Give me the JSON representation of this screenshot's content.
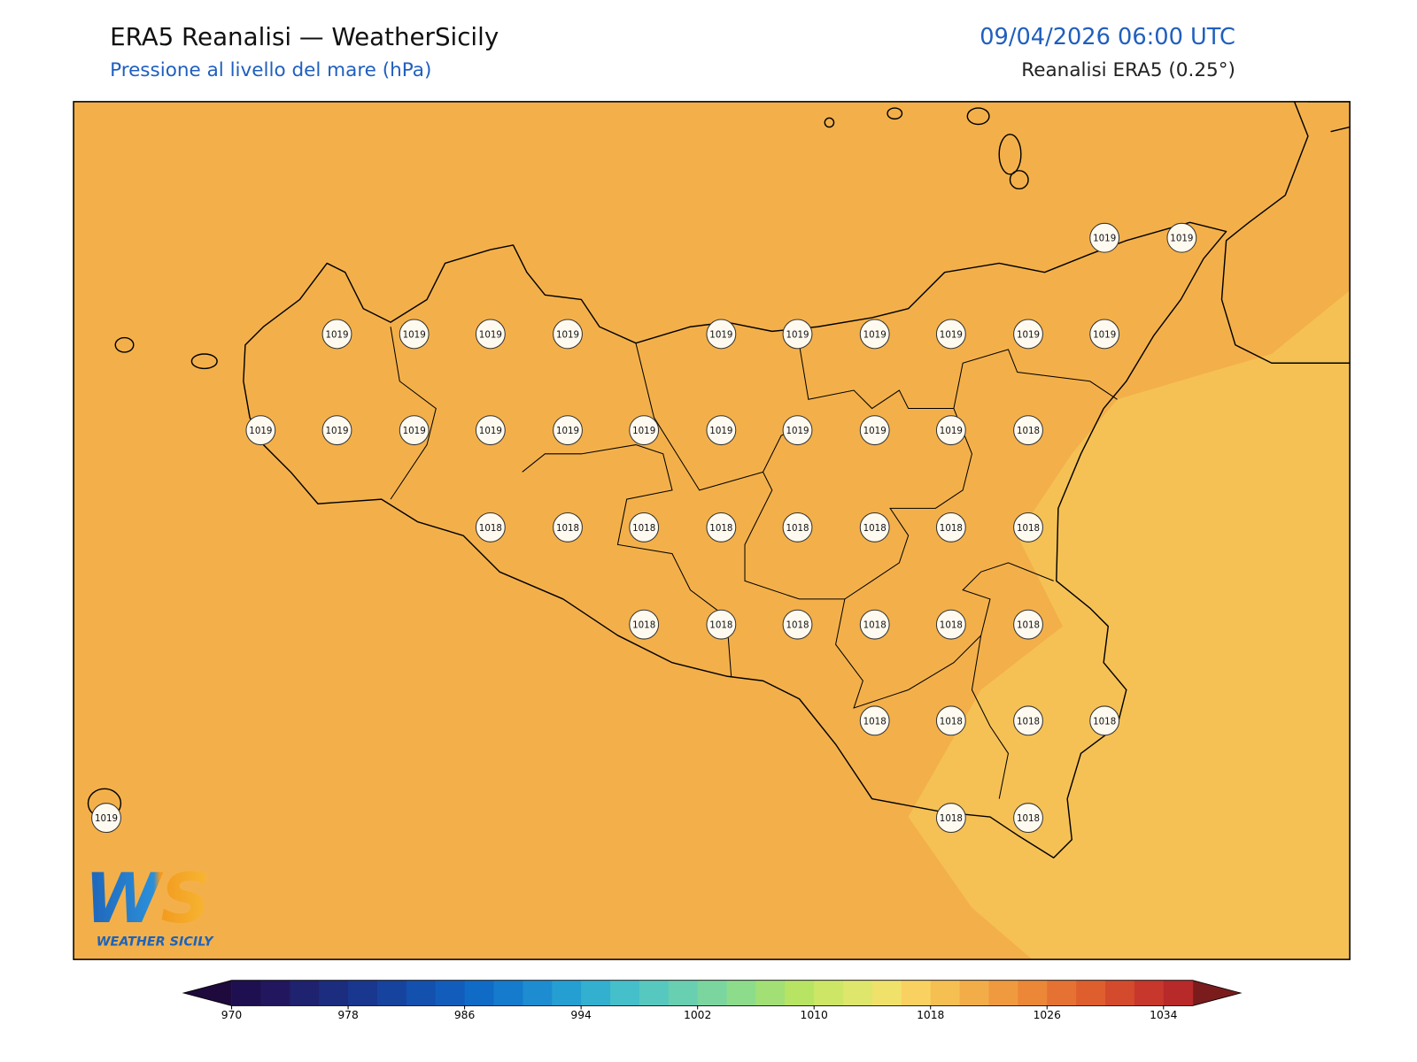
{
  "header": {
    "title": "ERA5 Reanalisi — WeatherSicily",
    "subtitle": "Pressione al livello del mare (hPa)",
    "datetime": "09/04/2026 06:00 UTC",
    "source": "Reanalisi ERA5 (0.25°)"
  },
  "stations": [
    1019,
    1019,
    1019,
    1019,
    1019,
    1019,
    1019,
    1019,
    1019,
    1019,
    1019,
    1019,
    1019,
    1019,
    1019,
    1019,
    1019,
    1019,
    1019,
    1019,
    1019,
    1019,
    1018,
    1018,
    1018,
    1018,
    1018,
    1018,
    1018,
    1018,
    1018,
    1018,
    1018,
    1018,
    1018,
    1018,
    1018,
    1018,
    1018,
    1018,
    1018,
    1019,
    1018,
    1018
  ],
  "logo": {
    "mark": "WS",
    "text": "WEATHER SICILY"
  },
  "colorbar": {
    "range": [
      970,
      1036
    ],
    "ticks": [
      970,
      978,
      986,
      994,
      1002,
      1010,
      1018,
      1026,
      1034
    ],
    "colors": [
      "#1e1050",
      "#22175e",
      "#1f226e",
      "#1c2c7e",
      "#19378e",
      "#16439e",
      "#1450ae",
      "#125dbb",
      "#106bc6",
      "#157bcc",
      "#1d8cd0",
      "#259ed2",
      "#33b0d0",
      "#45bfca",
      "#57c8bf",
      "#68cfb0",
      "#7ad69e",
      "#8ddc8b",
      "#a2e076",
      "#b8e464",
      "#cde666",
      "#dee66c",
      "#f0e16b",
      "#f9d160",
      "#f6bf52",
      "#f3ad48",
      "#ef9a3e",
      "#eb8737",
      "#e57232",
      "#de5e2e",
      "#d44a2c",
      "#c8372b",
      "#b8292a"
    ],
    "under": "#1e0a3c",
    "over": "#7a1c1c"
  }
}
